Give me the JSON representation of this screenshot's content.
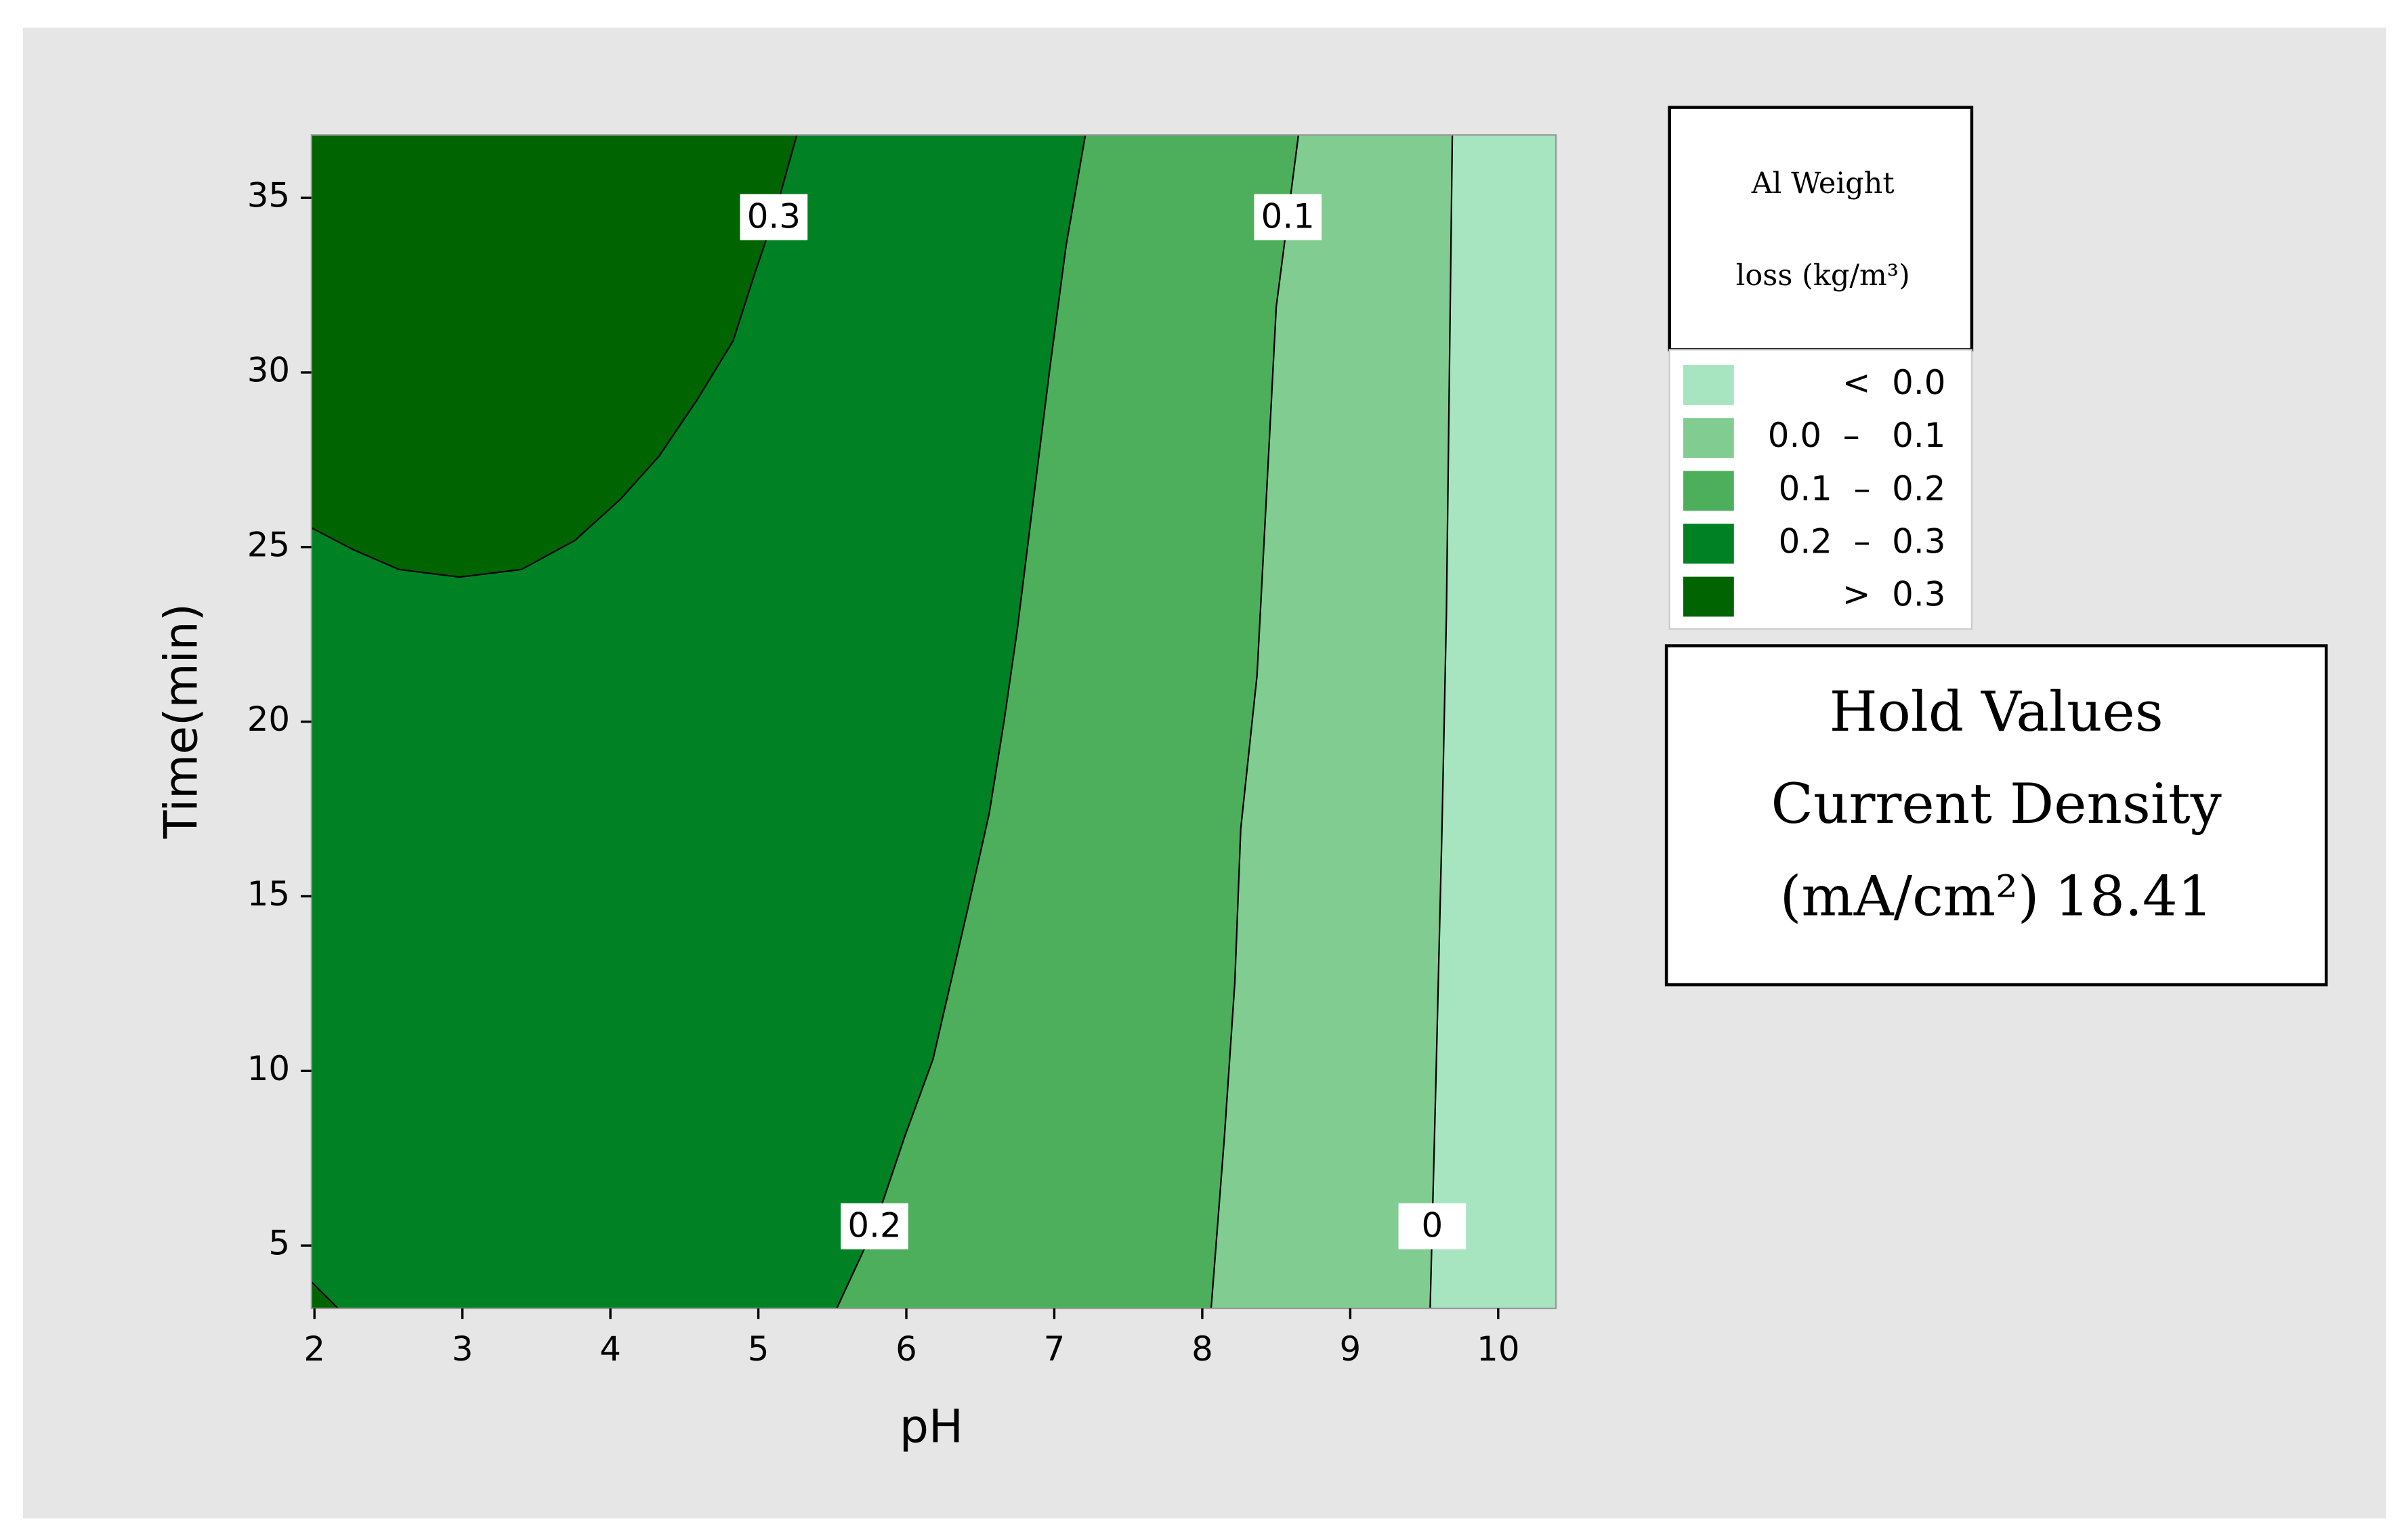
{
  "chart_data": {
    "type": "contour",
    "xlabel": "pH",
    "ylabel": "Time(min)",
    "xlim": [
      1.98,
      10.39
    ],
    "ylim": [
      3.2,
      36.8
    ],
    "xticks": [
      2,
      3,
      4,
      5,
      6,
      7,
      8,
      9,
      10
    ],
    "yticks": [
      5,
      10,
      15,
      20,
      25,
      30,
      35
    ],
    "legend_title": [
      "Al Weight",
      "loss (kg/m³)"
    ],
    "bands": [
      {
        "name": "<  0.0",
        "color": "#a6e5bf"
      },
      {
        "name": "0.0  –   0.1",
        "color": "#80cc91"
      },
      {
        "name": "0.1  –  0.2",
        "color": "#4daf5c"
      },
      {
        "name": "0.2  –  0.3",
        "color": "#008224"
      },
      {
        "name": ">  0.3",
        "color": "#006400"
      }
    ],
    "contours": [
      {
        "level": 0.3,
        "pieces": [
          {
            "x": [
              1.98,
              2.26,
              2.57,
              2.98,
              3.4,
              3.76,
              4.07,
              4.33,
              4.59,
              4.83,
              4.97,
              5.11,
              5.26
            ],
            "y": [
              25.55,
              24.93,
              24.36,
              24.14,
              24.36,
              25.19,
              26.38,
              27.61,
              29.24,
              30.91,
              32.76,
              34.52,
              36.8
            ]
          },
          {
            "x": [
              1.98,
              2.16
            ],
            "y": [
              3.96,
              3.2
            ]
          }
        ]
      },
      {
        "level": 0.2,
        "pieces": [
          {
            "x": [
              5.53,
              5.78,
              5.99,
              6.18,
              6.3,
              6.42,
              6.56,
              6.66,
              6.75,
              6.84,
              6.97,
              7.08,
              7.21
            ],
            "y": [
              3.2,
              5.49,
              8.13,
              10.33,
              12.53,
              14.73,
              17.37,
              20.0,
              22.64,
              25.72,
              30.12,
              33.64,
              36.8
            ]
          }
        ]
      },
      {
        "level": 0.1,
        "pieces": [
          {
            "x": [
              8.06,
              8.15,
              8.22,
              8.26,
              8.37,
              8.43,
              8.5,
              8.65
            ],
            "y": [
              3.2,
              8.13,
              12.53,
              16.93,
              21.32,
              26.16,
              31.88,
              36.8
            ]
          }
        ]
      },
      {
        "level": 0.0,
        "pieces": [
          {
            "x": [
              9.54,
              9.58,
              9.62,
              9.65,
              9.69
            ],
            "y": [
              3.2,
              9.89,
              16.93,
              23.08,
              36.8
            ]
          }
        ]
      }
    ],
    "hold": {
      "title": "Hold Values",
      "name": "Current Density",
      "unit": "(mA/cm²)",
      "value": 18.41
    }
  }
}
